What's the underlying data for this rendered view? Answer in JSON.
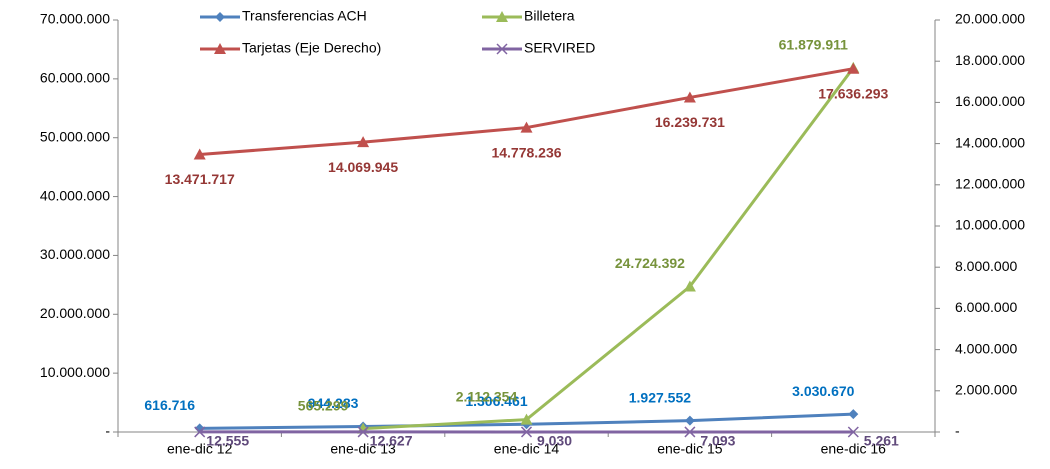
{
  "chart_data": {
    "type": "line",
    "categories": [
      "ene-dic 12",
      "ene-dic 13",
      "ene-dic 14",
      "ene-dic 15",
      "ene-dic 16"
    ],
    "ylim": [
      0,
      70000000
    ],
    "yticks": [
      {
        "value": 0,
        "label": "-"
      },
      {
        "value": 10000000,
        "label": "10.000.000"
      },
      {
        "value": 20000000,
        "label": "20.000.000"
      },
      {
        "value": 30000000,
        "label": "30.000.000"
      },
      {
        "value": 40000000,
        "label": "40.000.000"
      },
      {
        "value": 50000000,
        "label": "50.000.000"
      },
      {
        "value": 60000000,
        "label": "60.000.000"
      },
      {
        "value": 70000000,
        "label": "70.000.000"
      }
    ],
    "y2lim": [
      0,
      20000000
    ],
    "y2ticks": [
      {
        "value": 0,
        "label": "-"
      },
      {
        "value": 2000000,
        "label": "2.000.000"
      },
      {
        "value": 4000000,
        "label": "4.000.000"
      },
      {
        "value": 6000000,
        "label": "6.000.000"
      },
      {
        "value": 8000000,
        "label": "8.000.000"
      },
      {
        "value": 10000000,
        "label": "10.000.000"
      },
      {
        "value": 12000000,
        "label": "12.000.000"
      },
      {
        "value": 14000000,
        "label": "14.000.000"
      },
      {
        "value": 16000000,
        "label": "16.000.000"
      },
      {
        "value": 18000000,
        "label": "18.000.000"
      },
      {
        "value": 20000000,
        "label": "20.000.000"
      }
    ],
    "legend": "top",
    "series": [
      {
        "name": "Transferencias ACH",
        "color": "#4f81bd",
        "label_color": "#0070c0",
        "marker": "diamond",
        "values": [
          616716,
          944283,
          1306461,
          1927552,
          3030670
        ],
        "value_labels": [
          "616.716",
          "944.283",
          "1.306.461",
          "1.927.552",
          "3.030.670"
        ]
      },
      {
        "name": "Billetera",
        "color": "#9bbb59",
        "label_color": "#77933c",
        "marker": "triangle",
        "values": [
          null,
          565299,
          2112354,
          24724392,
          61879911
        ],
        "value_labels": [
          null,
          "565.299",
          "2.112.354",
          "24.724.392",
          "61.879.911"
        ]
      },
      {
        "name": "Tarjetas (Eje Derecho)",
        "color": "#c0504d",
        "label_color": "#953735",
        "marker": "triangle",
        "axis": "y2",
        "values": [
          13471717,
          14069945,
          14778236,
          16239731,
          17636293
        ],
        "value_labels": [
          "13.471.717",
          "14.069.945",
          "14.778.236",
          "16.239.731",
          "17.636.293"
        ]
      },
      {
        "name": "SERVIRED",
        "color": "#8064a2",
        "label_color": "#604a7b",
        "marker": "x",
        "values": [
          12555,
          12627,
          9030,
          7093,
          5261
        ],
        "value_labels": [
          "12.555",
          "12.627",
          "9.030",
          "7.093",
          "5.261"
        ]
      }
    ]
  }
}
